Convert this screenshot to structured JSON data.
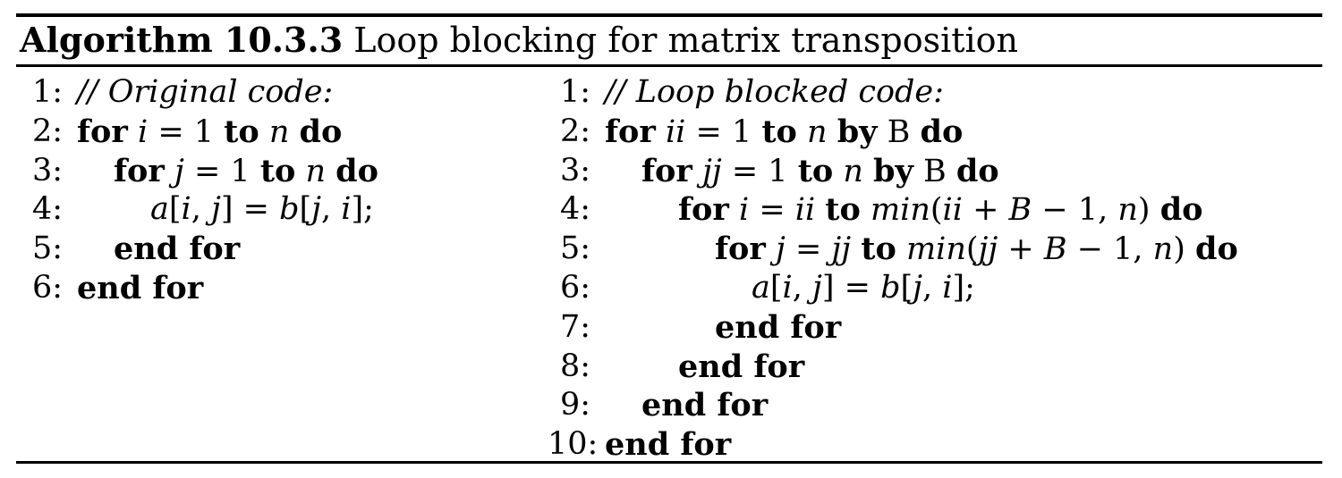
{
  "caption": {
    "label": "Algorithm 10.3.3",
    "title": "Loop blocking for matrix transposition"
  },
  "left": {
    "lines": [
      {
        "num": "1:",
        "indent": 0,
        "parts": [
          {
            "t": "// Original code:",
            "s": "it"
          }
        ]
      },
      {
        "num": "2:",
        "indent": 0,
        "parts": [
          {
            "t": "for",
            "s": "kw"
          },
          {
            "t": " "
          },
          {
            "t": "i",
            "s": "it"
          },
          {
            "t": " = 1 "
          },
          {
            "t": "to",
            "s": "kw"
          },
          {
            "t": " "
          },
          {
            "t": "n",
            "s": "it"
          },
          {
            "t": " "
          },
          {
            "t": "do",
            "s": "kw"
          }
        ]
      },
      {
        "num": "3:",
        "indent": 1,
        "parts": [
          {
            "t": "for",
            "s": "kw"
          },
          {
            "t": " "
          },
          {
            "t": "j",
            "s": "it"
          },
          {
            "t": " = 1 "
          },
          {
            "t": "to",
            "s": "kw"
          },
          {
            "t": " "
          },
          {
            "t": "n",
            "s": "it"
          },
          {
            "t": " "
          },
          {
            "t": "do",
            "s": "kw"
          }
        ]
      },
      {
        "num": "4:",
        "indent": 2,
        "parts": [
          {
            "t": "a",
            "s": "it"
          },
          {
            "t": "["
          },
          {
            "t": "i",
            "s": "it"
          },
          {
            "t": ", "
          },
          {
            "t": "j",
            "s": "it"
          },
          {
            "t": "] = "
          },
          {
            "t": "b",
            "s": "it"
          },
          {
            "t": "["
          },
          {
            "t": "j",
            "s": "it"
          },
          {
            "t": ", "
          },
          {
            "t": "i",
            "s": "it"
          },
          {
            "t": "];"
          }
        ]
      },
      {
        "num": "5:",
        "indent": 1,
        "parts": [
          {
            "t": "end for",
            "s": "kw"
          }
        ]
      },
      {
        "num": "6:",
        "indent": 0,
        "parts": [
          {
            "t": "end for",
            "s": "kw"
          }
        ]
      }
    ]
  },
  "right": {
    "lines": [
      {
        "num": "1:",
        "indent": 0,
        "parts": [
          {
            "t": "// Loop blocked code:",
            "s": "it"
          }
        ]
      },
      {
        "num": "2:",
        "indent": 0,
        "parts": [
          {
            "t": "for",
            "s": "kw"
          },
          {
            "t": " "
          },
          {
            "t": "ii",
            "s": "it"
          },
          {
            "t": " = 1 "
          },
          {
            "t": "to",
            "s": "kw"
          },
          {
            "t": " "
          },
          {
            "t": "n",
            "s": "it"
          },
          {
            "t": " "
          },
          {
            "t": "by",
            "s": "kw"
          },
          {
            "t": " B "
          },
          {
            "t": "do",
            "s": "kw"
          }
        ]
      },
      {
        "num": "3:",
        "indent": 1,
        "parts": [
          {
            "t": "for",
            "s": "kw"
          },
          {
            "t": " "
          },
          {
            "t": "jj",
            "s": "it"
          },
          {
            "t": " = 1 "
          },
          {
            "t": "to",
            "s": "kw"
          },
          {
            "t": " "
          },
          {
            "t": "n",
            "s": "it"
          },
          {
            "t": " "
          },
          {
            "t": "by",
            "s": "kw"
          },
          {
            "t": " B "
          },
          {
            "t": "do",
            "s": "kw"
          }
        ]
      },
      {
        "num": "4:",
        "indent": 2,
        "parts": [
          {
            "t": "for",
            "s": "kw"
          },
          {
            "t": " "
          },
          {
            "t": "i",
            "s": "it"
          },
          {
            "t": " = "
          },
          {
            "t": "ii",
            "s": "it"
          },
          {
            "t": " "
          },
          {
            "t": "to",
            "s": "kw"
          },
          {
            "t": " "
          },
          {
            "t": "min",
            "s": "it"
          },
          {
            "t": "("
          },
          {
            "t": "ii",
            "s": "it"
          },
          {
            "t": " + "
          },
          {
            "t": "B",
            "s": "it"
          },
          {
            "t": " − 1, "
          },
          {
            "t": "n",
            "s": "it"
          },
          {
            "t": ") "
          },
          {
            "t": "do",
            "s": "kw"
          }
        ]
      },
      {
        "num": "5:",
        "indent": 3,
        "parts": [
          {
            "t": "for",
            "s": "kw"
          },
          {
            "t": " "
          },
          {
            "t": "j",
            "s": "it"
          },
          {
            "t": " = "
          },
          {
            "t": "jj",
            "s": "it"
          },
          {
            "t": " "
          },
          {
            "t": "to",
            "s": "kw"
          },
          {
            "t": " "
          },
          {
            "t": "min",
            "s": "it"
          },
          {
            "t": "("
          },
          {
            "t": "jj",
            "s": "it"
          },
          {
            "t": " + "
          },
          {
            "t": "B",
            "s": "it"
          },
          {
            "t": " − 1, "
          },
          {
            "t": "n",
            "s": "it"
          },
          {
            "t": ") "
          },
          {
            "t": "do",
            "s": "kw"
          }
        ]
      },
      {
        "num": "6:",
        "indent": 4,
        "parts": [
          {
            "t": "a",
            "s": "it"
          },
          {
            "t": "["
          },
          {
            "t": "i",
            "s": "it"
          },
          {
            "t": ", "
          },
          {
            "t": "j",
            "s": "it"
          },
          {
            "t": "] = "
          },
          {
            "t": "b",
            "s": "it"
          },
          {
            "t": "["
          },
          {
            "t": "j",
            "s": "it"
          },
          {
            "t": ", "
          },
          {
            "t": "i",
            "s": "it"
          },
          {
            "t": "];"
          }
        ]
      },
      {
        "num": "7:",
        "indent": 3,
        "parts": [
          {
            "t": "end for",
            "s": "kw"
          }
        ]
      },
      {
        "num": "8:",
        "indent": 2,
        "parts": [
          {
            "t": "end for",
            "s": "kw"
          }
        ]
      },
      {
        "num": "9:",
        "indent": 1,
        "parts": [
          {
            "t": "end for",
            "s": "kw"
          }
        ]
      },
      {
        "num": "10:",
        "indent": 0,
        "parts": [
          {
            "t": "end for",
            "s": "kw"
          }
        ]
      }
    ]
  }
}
